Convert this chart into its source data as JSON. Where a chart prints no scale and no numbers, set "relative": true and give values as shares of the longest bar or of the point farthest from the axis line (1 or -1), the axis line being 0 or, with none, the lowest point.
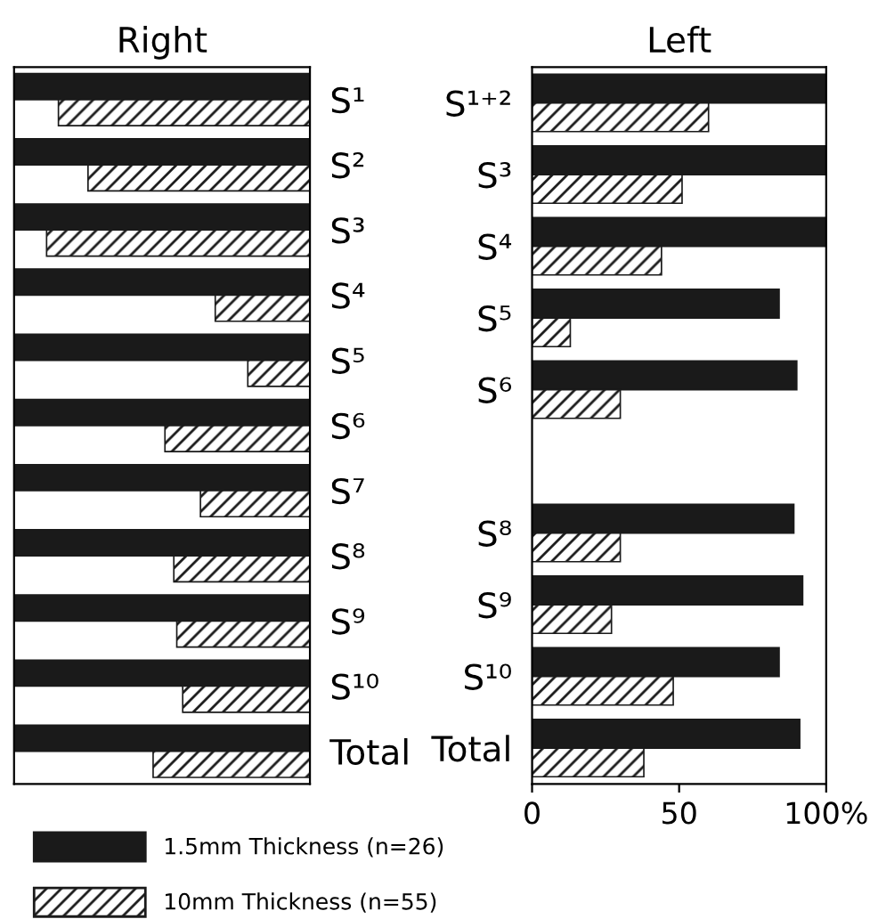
{
  "chart_data": [
    {
      "type": "bar",
      "orientation": "horizontal",
      "title": "Right",
      "categories": [
        "S¹",
        "S²",
        "S³",
        "S⁴",
        "S⁵",
        "S⁶",
        "S⁷",
        "S⁸",
        "S⁹",
        "S¹⁰",
        "Total"
      ],
      "series": [
        {
          "name": "1.5mm Thickness (n=26)",
          "color": "#1a1a1a",
          "values": [
            1,
            1,
            1,
            1,
            1,
            1,
            1,
            1,
            1,
            1,
            1
          ]
        },
        {
          "name": "10mm Thickness (n=55)",
          "color": "#1a1a1a",
          "values": [
            0.85,
            0.75,
            0.89,
            0.32,
            0.21,
            0.49,
            0.37,
            0.46,
            0.45,
            0.43,
            0.53
          ]
        }
      ],
      "relative": true,
      "legend": "bottom"
    },
    {
      "type": "bar",
      "orientation": "horizontal",
      "title": "Left",
      "categories": [
        "S¹⁺²",
        "S³",
        "S⁴",
        "S⁵",
        "S⁶",
        null,
        "S⁸",
        "S⁹",
        "S¹⁰",
        "Total"
      ],
      "series": [
        {
          "color": "#1a1a1a",
          "values": [
            100,
            100,
            100,
            84,
            90,
            null,
            89,
            92,
            84,
            91
          ]
        },
        {
          "color": "#1a1a1a",
          "values": [
            60,
            51,
            44,
            13,
            30,
            null,
            30,
            27,
            48,
            38
          ]
        }
      ],
      "xlim": [
        0,
        100
      ],
      "xticks": [
        0,
        50,
        {
          "value": 100,
          "label": "100%"
        }
      ]
    }
  ]
}
